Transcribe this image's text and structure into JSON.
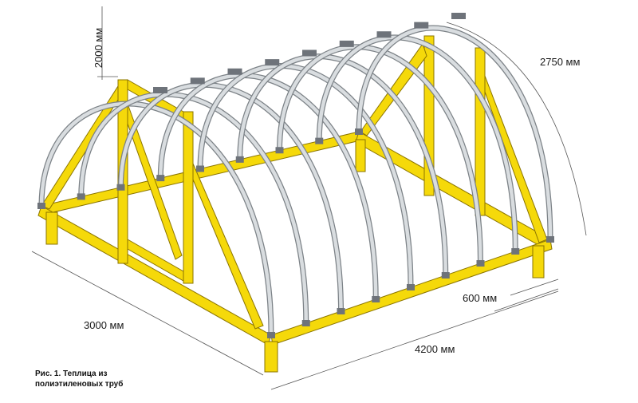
{
  "figure": {
    "caption_line1": "Рис. 1. Теплица из",
    "caption_line2": "полиэтиленовых труб"
  },
  "dimensions": {
    "height": "2000 мм",
    "arc_length": "2750 мм",
    "width": "3000 мм",
    "length": "4200 мм",
    "arch_spacing": "600 мм"
  },
  "colors": {
    "timber": "#f5d90a",
    "timber_edge": "#8a7400",
    "pipe": "#d9dde0",
    "pipe_edge": "#7c8287",
    "clamp": "#6e737a",
    "dim_line": "#555555"
  },
  "arch_count": 9
}
